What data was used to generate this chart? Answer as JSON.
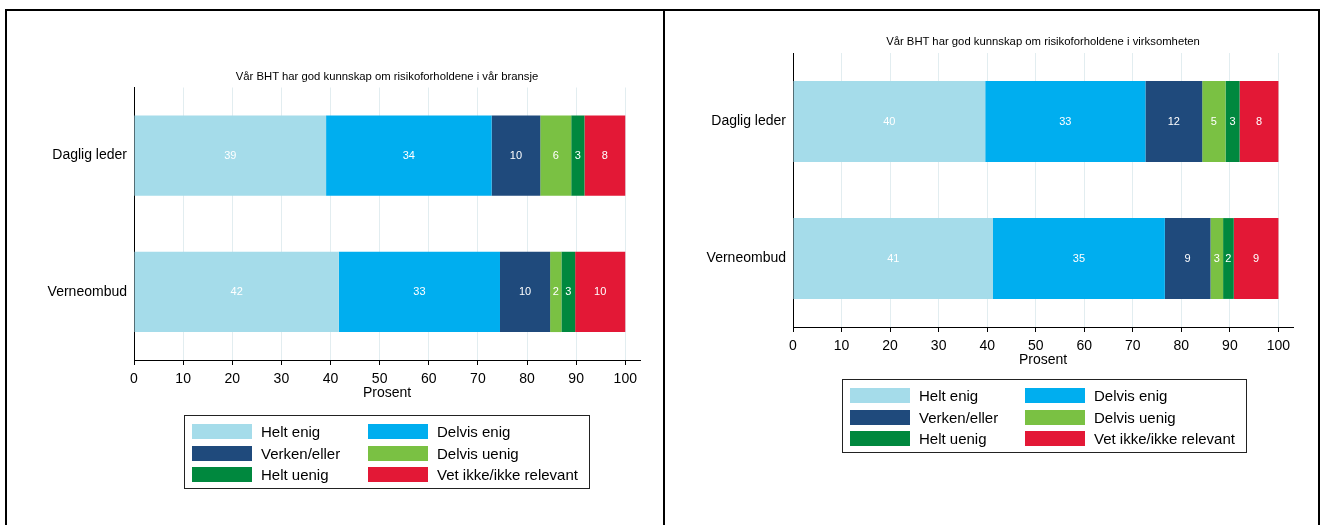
{
  "chart_data": [
    {
      "type": "bar",
      "orientation": "horizontal",
      "stacked": true,
      "title": "Vår BHT har god kunnskap om risikoforholdene i vår bransje",
      "xlabel": "Prosent",
      "categories": [
        "Daglig leder",
        "Verneombud"
      ],
      "series": [
        {
          "name": "Helt enig",
          "color": "#a5dcea",
          "values": [
            39.1,
            41.7
          ],
          "value_labels": [
            "39",
            "42"
          ]
        },
        {
          "name": "Delvis enig",
          "color": "#00aeef",
          "values": [
            33.7,
            32.8
          ],
          "value_labels": [
            "34",
            "33"
          ]
        },
        {
          "name": "Verken/eller",
          "color": "#1f4a7c",
          "values": [
            9.9,
            10.2
          ],
          "value_labels": [
            "10",
            "10"
          ]
        },
        {
          "name": "Delvis uenig",
          "color": "#7ac143",
          "values": [
            6.3,
            2.3
          ],
          "value_labels": [
            "6",
            "2"
          ]
        },
        {
          "name": "Helt uenig",
          "color": "#00883e",
          "values": [
            2.7,
            2.8
          ],
          "value_labels": [
            "3",
            "3"
          ]
        },
        {
          "name": "Vet ikke/ikke relevant",
          "color": "#e31836",
          "values": [
            8.3,
            10.2
          ],
          "value_labels": [
            "8",
            "10"
          ]
        }
      ],
      "xlim": [
        0,
        103
      ],
      "xticks": [
        0,
        10,
        20,
        30,
        40,
        50,
        60,
        70,
        80,
        90,
        100
      ],
      "grid": "x",
      "legend": "bottom"
    },
    {
      "type": "bar",
      "orientation": "horizontal",
      "stacked": true,
      "title": "Vår BHT har god kunnskap om risikoforholdene i virksomheten",
      "xlabel": "Prosent",
      "categories": [
        "Daglig leder",
        "Verneombud"
      ],
      "series": [
        {
          "name": "Helt enig",
          "color": "#a5dcea",
          "values": [
            39.6,
            41.2
          ],
          "value_labels": [
            "40",
            "41"
          ]
        },
        {
          "name": "Delvis enig",
          "color": "#00aeef",
          "values": [
            33.0,
            35.4
          ],
          "value_labels": [
            "33",
            "35"
          ]
        },
        {
          "name": "Verken/eller",
          "color": "#1f4a7c",
          "values": [
            11.7,
            9.4
          ],
          "value_labels": [
            "12",
            "9"
          ]
        },
        {
          "name": "Delvis uenig",
          "color": "#7ac143",
          "values": [
            4.8,
            2.6
          ],
          "value_labels": [
            "5",
            "3"
          ]
        },
        {
          "name": "Helt uenig",
          "color": "#00883e",
          "values": [
            2.9,
            2.2
          ],
          "value_labels": [
            "3",
            "2"
          ]
        },
        {
          "name": "Vet ikke/ikke relevant",
          "color": "#e31836",
          "values": [
            8.0,
            9.2
          ],
          "value_labels": [
            "8",
            "9"
          ]
        }
      ],
      "xlim": [
        0,
        103
      ],
      "xticks": [
        0,
        10,
        20,
        30,
        40,
        50,
        60,
        70,
        80,
        90,
        100
      ],
      "grid": "x",
      "legend": "bottom"
    }
  ]
}
